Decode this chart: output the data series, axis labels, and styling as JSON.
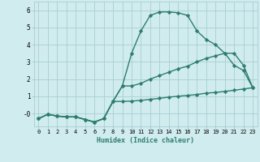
{
  "line1_x": [
    0,
    1,
    2,
    3,
    4,
    5,
    6,
    7,
    8,
    9,
    10,
    11,
    12,
    13,
    14,
    15,
    16,
    17,
    18,
    19,
    20,
    21,
    22,
    23
  ],
  "line1_y": [
    -0.3,
    -0.05,
    -0.15,
    -0.2,
    -0.2,
    -0.35,
    -0.5,
    -0.3,
    0.7,
    1.6,
    3.5,
    4.8,
    5.7,
    5.9,
    5.9,
    5.85,
    5.7,
    4.8,
    4.3,
    4.0,
    3.5,
    2.8,
    2.5,
    1.5
  ],
  "line2_x": [
    0,
    1,
    2,
    3,
    4,
    5,
    6,
    7,
    8,
    9,
    10,
    11,
    12,
    13,
    14,
    15,
    16,
    17,
    18,
    19,
    20,
    21,
    22,
    23
  ],
  "line2_y": [
    -0.3,
    -0.05,
    -0.15,
    -0.2,
    -0.2,
    -0.35,
    -0.5,
    -0.3,
    0.7,
    1.6,
    1.6,
    1.75,
    2.0,
    2.2,
    2.4,
    2.6,
    2.75,
    3.0,
    3.2,
    3.35,
    3.5,
    3.5,
    2.8,
    1.5
  ],
  "line3_x": [
    0,
    1,
    2,
    3,
    4,
    5,
    6,
    7,
    8,
    9,
    10,
    11,
    12,
    13,
    14,
    15,
    16,
    17,
    18,
    19,
    20,
    21,
    22,
    23
  ],
  "line3_y": [
    -0.3,
    -0.05,
    -0.15,
    -0.2,
    -0.2,
    -0.35,
    -0.5,
    -0.3,
    0.7,
    0.7,
    0.72,
    0.76,
    0.82,
    0.88,
    0.95,
    1.0,
    1.05,
    1.1,
    1.18,
    1.22,
    1.28,
    1.35,
    1.42,
    1.5
  ],
  "line_color": "#2e7d6e",
  "bg_color": "#d0ecee",
  "grid_color": "#a8cdd4",
  "xlabel": "Humidex (Indice chaleur)",
  "xlim": [
    -0.5,
    23.5
  ],
  "ylim": [
    -0.75,
    6.5
  ],
  "yticks": [
    0,
    1,
    2,
    3,
    4,
    5,
    6
  ],
  "ytick_labels": [
    "-0",
    "1",
    "2",
    "3",
    "4",
    "5",
    "6"
  ],
  "xticks": [
    0,
    1,
    2,
    3,
    4,
    5,
    6,
    7,
    8,
    9,
    10,
    11,
    12,
    13,
    14,
    15,
    16,
    17,
    18,
    19,
    20,
    21,
    22,
    23
  ],
  "marker": "D",
  "markersize": 2.2,
  "linewidth": 1.0
}
